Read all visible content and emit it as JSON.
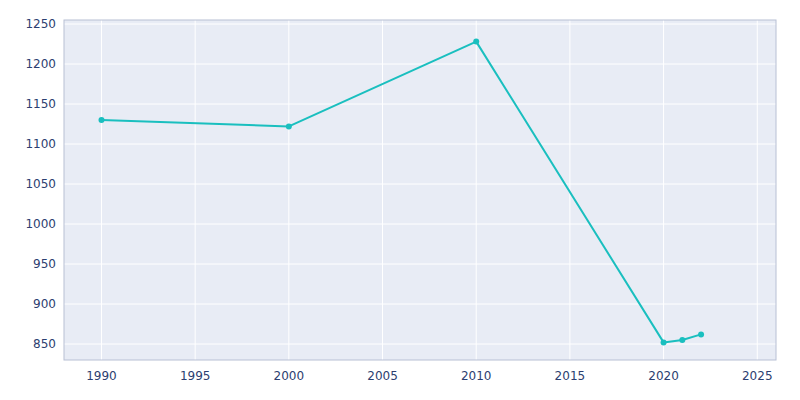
{
  "chart_data": {
    "type": "line",
    "x": [
      1990,
      2000,
      2010,
      2020,
      2021,
      2022
    ],
    "values": [
      1130,
      1122,
      1228,
      852,
      855,
      862
    ],
    "color": "#1ABFBF",
    "marker": "circle",
    "xlim": [
      1988,
      2026
    ],
    "ylim": [
      830,
      1255
    ],
    "xticks": [
      1990,
      1995,
      2000,
      2005,
      2010,
      2015,
      2020,
      2025
    ],
    "yticks": [
      850,
      900,
      950,
      1000,
      1050,
      1100,
      1150,
      1200,
      1250
    ],
    "grid": true
  }
}
